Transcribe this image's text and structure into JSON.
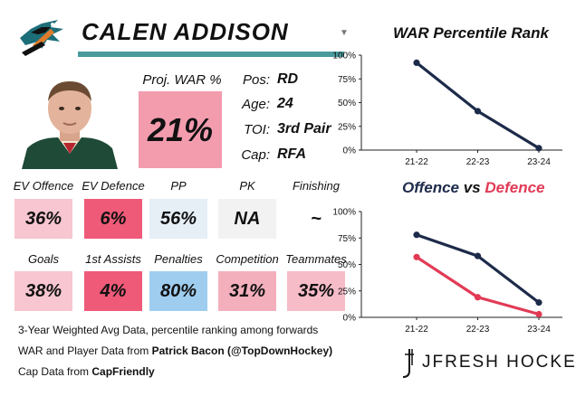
{
  "player": {
    "name": "CALEN ADDISON",
    "proj_war_label": "Proj. WAR %",
    "proj_war_value": "21%",
    "proj_war_color": "#f39cae"
  },
  "info": [
    {
      "label": "Pos:",
      "value": "RD"
    },
    {
      "label": "Age:",
      "value": "24"
    },
    {
      "label": "TOI:",
      "value": "3rd Pair"
    },
    {
      "label": "Cap:",
      "value": "RFA"
    }
  ],
  "metrics_row1": [
    {
      "label": "EV Offence",
      "value": "36%",
      "color": "#f7c6d0"
    },
    {
      "label": "EV Defence",
      "value": "6%",
      "color": "#ee5a78"
    },
    {
      "label": "PP",
      "value": "56%",
      "color": "#e6eef6"
    },
    {
      "label": "PK",
      "value": "NA",
      "color": "#f2f2f2"
    },
    {
      "label": "Finishing",
      "value": "~",
      "color": "#ffffff"
    }
  ],
  "metrics_row2": [
    {
      "label": "Goals",
      "value": "38%",
      "color": "#f7c6d0"
    },
    {
      "label": "1st Assists",
      "value": "4%",
      "color": "#ee5a78"
    },
    {
      "label": "Penalties",
      "value": "80%",
      "color": "#9fcdf0"
    },
    {
      "label": "Competition",
      "value": "31%",
      "color": "#f4afbd"
    },
    {
      "label": "Teammates",
      "value": "35%",
      "color": "#f6bcc8"
    }
  ],
  "footer": {
    "line1": "3-Year Weighted Avg Data, percentile ranking among forwards",
    "line2_prefix": "WAR and Player Data from ",
    "line2_bold": "Patrick Bacon (@TopDownHockey)",
    "line3_prefix": "Cap Data from ",
    "line3_bold": "CapFriendly"
  },
  "brand": {
    "text": "JFRESH HOCKEY",
    "icon": "jfresh-logo-icon"
  },
  "icons": {
    "team_logo": "sharks-logo-icon",
    "dropdown": "caret-down-icon"
  },
  "chart_data": [
    {
      "type": "line",
      "title": "WAR Percentile Rank",
      "categories": [
        "21-22",
        "22-23",
        "23-24"
      ],
      "series": [
        {
          "values": [
            92,
            41,
            2
          ],
          "color": "#1d2b4a"
        }
      ],
      "yticks": [
        "0%",
        "25%",
        "50%",
        "75%",
        "100%"
      ],
      "ylim": [
        0,
        100
      ],
      "grid": false,
      "legend": "none"
    },
    {
      "type": "line",
      "title_part1": "Offence",
      "title_mid": " vs ",
      "title_part2": "Defence",
      "title_color1": "#1d2b4a",
      "title_color2": "#e23a55",
      "categories": [
        "21-22",
        "22-23",
        "23-24"
      ],
      "series": [
        {
          "name": "Offence",
          "values": [
            78,
            58,
            14
          ],
          "color": "#1d2b4a"
        },
        {
          "name": "Defence",
          "values": [
            57,
            19,
            3
          ],
          "color": "#e23a55"
        }
      ],
      "yticks": [
        "0%",
        "25%",
        "50%",
        "75%",
        "100%"
      ],
      "ylim": [
        0,
        100
      ],
      "grid": false,
      "legend": "none"
    }
  ]
}
